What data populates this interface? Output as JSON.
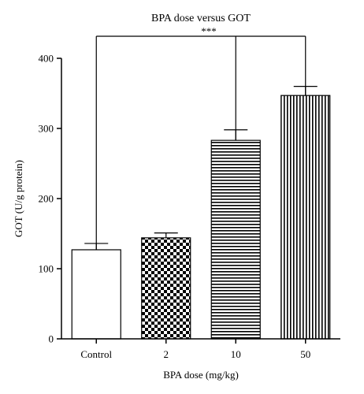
{
  "chart_data": {
    "type": "bar",
    "title": "BPA dose versus GOT",
    "xlabel": "BPA dose (mg/kg)",
    "ylabel": "GOT (U/g protein)",
    "categories": [
      "Control",
      "2",
      "10",
      "50"
    ],
    "values": [
      127,
      144,
      283,
      347
    ],
    "errors": [
      9,
      7,
      15,
      13
    ],
    "patterns": [
      "none",
      "checker",
      "horizontal-lines",
      "vertical-lines"
    ],
    "ylim": [
      0,
      400
    ],
    "yticks": [
      0,
      100,
      200,
      300,
      400
    ],
    "significance": {
      "label": "***",
      "from": "Control",
      "to": [
        "10",
        "50"
      ]
    },
    "grid": false,
    "legend": "none"
  }
}
